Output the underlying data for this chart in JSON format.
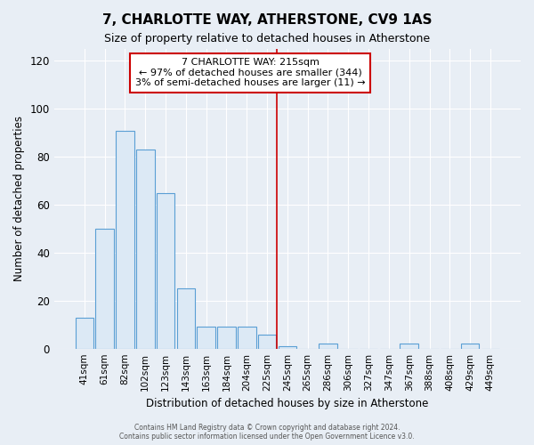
{
  "title": "7, CHARLOTTE WAY, ATHERSTONE, CV9 1AS",
  "subtitle": "Size of property relative to detached houses in Atherstone",
  "xlabel": "Distribution of detached houses by size in Atherstone",
  "ylabel": "Number of detached properties",
  "bar_labels": [
    "41sqm",
    "61sqm",
    "82sqm",
    "102sqm",
    "123sqm",
    "143sqm",
    "163sqm",
    "184sqm",
    "204sqm",
    "225sqm",
    "245sqm",
    "265sqm",
    "286sqm",
    "306sqm",
    "327sqm",
    "347sqm",
    "367sqm",
    "388sqm",
    "408sqm",
    "429sqm",
    "449sqm"
  ],
  "bar_values": [
    13,
    50,
    91,
    83,
    65,
    25,
    9,
    9,
    9,
    6,
    1,
    0,
    2,
    0,
    0,
    0,
    2,
    0,
    0,
    2,
    0
  ],
  "bar_color": "#dce9f5",
  "bar_edge_color": "#5a9fd4",
  "background_color": "#e8eef5",
  "plot_bg_color": "#e8eef5",
  "grid_color": "#ffffff",
  "vline_x_index": 9.5,
  "vline_color": "#cc0000",
  "annotation_title": "7 CHARLOTTE WAY: 215sqm",
  "annotation_line1": "← 97% of detached houses are smaller (344)",
  "annotation_line2": "3% of semi-detached houses are larger (11) →",
  "annotation_box_color": "#ffffff",
  "annotation_border_color": "#cc0000",
  "ylim": [
    0,
    125
  ],
  "yticks": [
    0,
    20,
    40,
    60,
    80,
    100,
    120
  ],
  "footer1": "Contains HM Land Registry data © Crown copyright and database right 2024.",
  "footer2": "Contains public sector information licensed under the Open Government Licence v3.0."
}
